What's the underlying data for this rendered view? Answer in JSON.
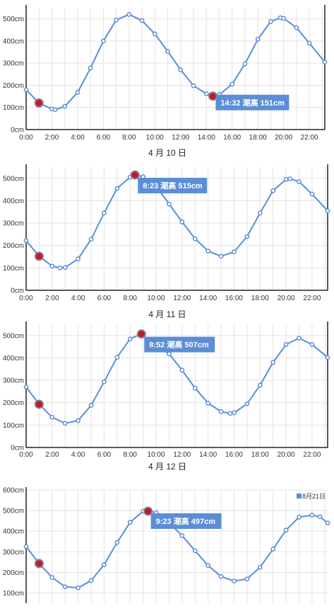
{
  "colors": {
    "line": "#5b8ed6",
    "point_fill": "#ffffff",
    "marker_fill": "#c8171e",
    "marker_ring": "#7f7f9f",
    "callout_bg": "#5b8ed6",
    "grid": "#e3e3e3",
    "axis": "#222222"
  },
  "chart_data": [
    {
      "type": "line",
      "x_ticks": [
        "0:00",
        "2:00",
        "4:00",
        "6:00",
        "8:00",
        "10:00",
        "12:00",
        "14:00",
        "16:00",
        "18:00",
        "20:00",
        "22:00"
      ],
      "y_ticks": [
        "0cm",
        "100cm",
        "200cm",
        "300cm",
        "400cm",
        "500cm"
      ],
      "ylim": [
        0,
        550
      ],
      "xlim": [
        0,
        23.2
      ],
      "x": [
        0,
        1,
        2,
        2.25,
        3,
        4,
        5,
        6,
        7,
        8,
        9,
        10,
        11,
        12,
        13,
        14,
        14.5,
        15,
        16,
        17,
        18,
        19,
        19.75,
        20,
        21,
        22,
        23.2
      ],
      "y": [
        180,
        120,
        93,
        90,
        105,
        168,
        278,
        400,
        495,
        520,
        492,
        432,
        353,
        270,
        198,
        162,
        151,
        158,
        205,
        297,
        408,
        488,
        505,
        502,
        460,
        390,
        305
      ],
      "markers": [
        {
          "x": 1,
          "y": 120,
          "label": ""
        },
        {
          "x": 14.5,
          "y": 151,
          "label": "14:32 潮高 151cm"
        }
      ],
      "date_label": "4 月 10 日"
    },
    {
      "type": "line",
      "x_ticks": [
        "0:00",
        "2:00",
        "4:00",
        "6:00",
        "8:00",
        "10:00",
        "12:00",
        "14:00",
        "16:00",
        "18:00",
        "20:00",
        "22:00"
      ],
      "y_ticks": [
        "0cm",
        "100cm",
        "200cm",
        "300cm",
        "400cm",
        "500cm"
      ],
      "ylim": [
        0,
        550
      ],
      "xlim": [
        0,
        23.2
      ],
      "x": [
        0,
        1,
        2,
        2.6,
        3,
        4,
        5,
        6,
        7,
        8,
        8.38,
        9,
        10,
        11,
        12,
        13,
        14,
        15,
        16,
        17,
        18,
        19,
        20,
        20.3,
        21,
        22,
        23.2
      ],
      "y": [
        222,
        152,
        108,
        100,
        102,
        140,
        228,
        345,
        455,
        505,
        515,
        507,
        465,
        385,
        305,
        230,
        175,
        152,
        172,
        240,
        345,
        445,
        495,
        498,
        485,
        430,
        355
      ],
      "markers": [
        {
          "x": 1,
          "y": 152,
          "label": ""
        },
        {
          "x": 8.38,
          "y": 515,
          "label": "8:23 潮高 515cm"
        }
      ],
      "date_label": "4 月 11 日"
    },
    {
      "type": "line",
      "x_ticks": [
        "0:00",
        "2:00",
        "4:00",
        "6:00",
        "8:00",
        "10:00",
        "12:00",
        "14:00",
        "16:00",
        "18:00",
        "20:00",
        "22:00"
      ],
      "y_ticks": [
        "0cm",
        "100cm",
        "200cm",
        "300cm",
        "400cm",
        "500cm"
      ],
      "ylim": [
        0,
        550
      ],
      "xlim": [
        0,
        23.2
      ],
      "x": [
        0,
        1,
        2,
        3,
        4,
        5,
        6,
        7,
        8,
        8.87,
        9,
        10,
        11,
        12,
        13,
        14,
        15,
        15.7,
        16,
        17,
        18,
        19,
        20,
        21,
        22,
        23.2
      ],
      "y": [
        270,
        193,
        135,
        108,
        120,
        188,
        293,
        403,
        485,
        507,
        500,
        455,
        418,
        345,
        265,
        198,
        160,
        152,
        155,
        195,
        278,
        380,
        460,
        488,
        460,
        402
      ],
      "markers": [
        {
          "x": 1,
          "y": 193,
          "label": ""
        },
        {
          "x": 8.87,
          "y": 507,
          "label": "8:52 潮高 507cm"
        }
      ],
      "date_label": "4 月 12 日"
    },
    {
      "type": "line",
      "y_ticks": [
        "100cm",
        "200cm",
        "300cm",
        "400cm",
        "500cm",
        "600cm"
      ],
      "ylim": [
        50,
        600
      ],
      "xlim": [
        0,
        23.2
      ],
      "x": [
        0,
        1,
        2,
        3,
        4,
        5,
        6,
        7,
        8,
        9,
        9.38,
        10,
        11,
        12,
        13,
        14,
        15,
        16,
        17,
        18,
        19,
        20,
        21,
        22,
        22.6,
        23.2
      ],
      "y": [
        325,
        243,
        175,
        130,
        125,
        160,
        237,
        345,
        443,
        497,
        497,
        490,
        440,
        378,
        305,
        233,
        180,
        158,
        168,
        225,
        313,
        405,
        468,
        478,
        470,
        440
      ],
      "markers": [
        {
          "x": 1,
          "y": 243,
          "label": ""
        },
        {
          "x": 9.38,
          "y": 497,
          "label": "9:23 潮高 497cm"
        }
      ],
      "legend": [
        "8月21日"
      ],
      "date_label": ""
    }
  ]
}
